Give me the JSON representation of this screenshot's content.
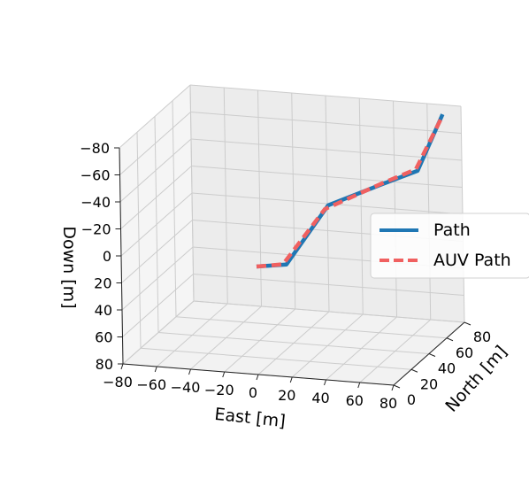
{
  "chart_data": {
    "type": "line3d",
    "axes": {
      "x": {
        "label": "East [m]",
        "range": [
          -80,
          80
        ],
        "ticks": [
          "−80",
          "−60",
          "−40",
          "−20",
          "0",
          "20",
          "40",
          "60",
          "80"
        ]
      },
      "y": {
        "label": "North [m]",
        "range": [
          0,
          80
        ],
        "ticks": [
          "0",
          "20",
          "40",
          "60",
          "80"
        ]
      },
      "z": {
        "label": "Down [m]",
        "range": [
          -80,
          80
        ],
        "inverted": true,
        "ticks": [
          "−80",
          "−60",
          "−40",
          "−20",
          "0",
          "20",
          "40",
          "60",
          "80"
        ]
      }
    },
    "grid": true,
    "legend": {
      "placement": "right",
      "entries": [
        "Path",
        "AUV Path"
      ]
    },
    "series": [
      {
        "name": "Path",
        "color": "#1f77b4",
        "style": "solid",
        "points": [
          {
            "east": 0,
            "north": 0,
            "down": 0
          },
          {
            "east": 15,
            "north": 5,
            "down": 0
          },
          {
            "east": 35,
            "north": 15,
            "down": -40
          },
          {
            "east": 58,
            "north": 32,
            "down": -48
          },
          {
            "east": 75,
            "north": 40,
            "down": -55
          },
          {
            "east": 85,
            "north": 50,
            "down": -92
          }
        ]
      },
      {
        "name": "AUV Path",
        "color": "#f06060",
        "style": "dashed",
        "points": [
          {
            "east": 0,
            "north": 0,
            "down": 0
          },
          {
            "east": 13,
            "north": 5,
            "down": 0
          },
          {
            "east": 33,
            "north": 15,
            "down": -37
          },
          {
            "east": 57,
            "north": 32,
            "down": -48
          },
          {
            "east": 74,
            "north": 40,
            "down": -56
          },
          {
            "east": 85,
            "north": 50,
            "down": -91
          }
        ]
      }
    ]
  }
}
